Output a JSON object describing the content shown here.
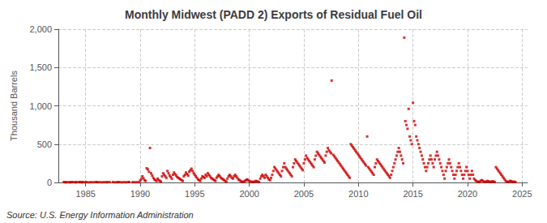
{
  "chart_data": {
    "type": "scatter",
    "title": "Monthly Midwest (PADD 2) Exports of Residual Fuel Oil",
    "ylabel": "Thousand Barrels",
    "annotations": [
      "Source: U.S. Energy Information Administration"
    ],
    "color": "#CC0000",
    "marker": "square",
    "grid": true,
    "xlim": [
      1982.5,
      2025.5
    ],
    "xticks": [
      1985,
      1990,
      1995,
      2000,
      2005,
      2010,
      2015,
      2020,
      2025
    ],
    "ylim": [
      0,
      2000
    ],
    "yticks": [
      0,
      500,
      {
        "value": 1000,
        "label": "1,000"
      },
      {
        "value": 1500,
        "label": "1,500"
      },
      {
        "value": 2000,
        "label": "2,000"
      }
    ],
    "x": [
      1983.0,
      1983.1,
      1983.2,
      1983.3,
      1983.5,
      1983.6,
      1983.7,
      1983.8,
      1984.0,
      1984.1,
      1984.2,
      1984.4,
      1984.5,
      1984.6,
      1984.7,
      1984.8,
      1985.0,
      1985.1,
      1985.3,
      1985.5,
      1985.7,
      1985.9,
      1986.0,
      1986.1,
      1986.3,
      1986.5,
      1986.7,
      1986.9,
      1987.0,
      1987.2,
      1987.5,
      1987.7,
      1987.9,
      1988.0,
      1988.1,
      1988.3,
      1988.5,
      1988.7,
      1988.9,
      1989.0,
      1989.3,
      1989.5,
      1989.7,
      1989.9,
      1990.0,
      1990.1,
      1990.2,
      1990.3,
      1990.4,
      1990.5,
      1990.6,
      1990.7,
      1990.8,
      1990.9,
      1991.0,
      1991.1,
      1991.2,
      1991.3,
      1991.4,
      1991.5,
      1991.6,
      1991.7,
      1991.8,
      1991.9,
      1992.0,
      1992.1,
      1992.2,
      1992.3,
      1992.4,
      1992.5,
      1992.6,
      1992.7,
      1992.8,
      1992.9,
      1993.0,
      1993.1,
      1993.2,
      1993.3,
      1993.4,
      1993.5,
      1993.6,
      1993.7,
      1993.8,
      1993.9,
      1994.0,
      1994.1,
      1994.2,
      1994.3,
      1994.4,
      1994.5,
      1994.6,
      1994.7,
      1994.8,
      1994.9,
      1995.0,
      1995.1,
      1995.2,
      1995.3,
      1995.4,
      1995.5,
      1995.6,
      1995.7,
      1995.8,
      1995.9,
      1996.0,
      1996.1,
      1996.2,
      1996.3,
      1996.4,
      1996.5,
      1996.6,
      1996.7,
      1996.8,
      1996.9,
      1997.0,
      1997.1,
      1997.2,
      1997.3,
      1997.4,
      1997.5,
      1997.6,
      1997.7,
      1997.8,
      1997.9,
      1998.0,
      1998.1,
      1998.2,
      1998.3,
      1998.4,
      1998.5,
      1998.6,
      1998.7,
      1998.8,
      1998.9,
      1999.0,
      1999.1,
      1999.2,
      1999.3,
      1999.4,
      1999.5,
      1999.6,
      1999.7,
      1999.8,
      1999.9,
      2000.0,
      2000.1,
      2000.2,
      2000.3,
      2000.4,
      2000.5,
      2000.6,
      2000.7,
      2000.8,
      2000.9,
      2001.0,
      2001.1,
      2001.2,
      2001.3,
      2001.4,
      2001.5,
      2001.6,
      2001.7,
      2001.8,
      2001.9,
      2002.0,
      2002.1,
      2002.2,
      2002.3,
      2002.4,
      2002.5,
      2002.6,
      2002.7,
      2002.8,
      2002.9,
      2003.0,
      2003.1,
      2003.2,
      2003.3,
      2003.4,
      2003.5,
      2003.6,
      2003.7,
      2003.8,
      2003.9,
      2004.0,
      2004.1,
      2004.2,
      2004.3,
      2004.4,
      2004.5,
      2004.6,
      2004.7,
      2004.8,
      2004.9,
      2005.0,
      2005.1,
      2005.2,
      2005.3,
      2005.4,
      2005.5,
      2005.6,
      2005.7,
      2005.8,
      2005.9,
      2006.0,
      2006.1,
      2006.2,
      2006.3,
      2006.4,
      2006.5,
      2006.6,
      2006.7,
      2006.8,
      2006.9,
      2007.0,
      2007.1,
      2007.2,
      2007.3,
      2007.4,
      2007.5,
      2007.55,
      2007.7,
      2007.8,
      2007.9,
      2008.0,
      2008.1,
      2008.2,
      2008.3,
      2008.4,
      2008.5,
      2008.6,
      2008.7,
      2008.8,
      2008.9,
      2009.0,
      2009.1,
      2009.2,
      2009.3,
      2009.4,
      2009.5,
      2009.6,
      2009.7,
      2009.8,
      2009.9,
      2010.0,
      2010.1,
      2010.2,
      2010.3,
      2010.4,
      2010.5,
      2010.6,
      2010.7,
      2010.8,
      2010.9,
      2011.0,
      2011.1,
      2011.2,
      2011.3,
      2011.4,
      2011.5,
      2011.6,
      2011.7,
      2011.8,
      2011.9,
      2012.0,
      2012.1,
      2012.2,
      2012.3,
      2012.4,
      2012.5,
      2012.6,
      2012.7,
      2012.8,
      2012.9,
      2013.0,
      2013.1,
      2013.2,
      2013.3,
      2013.4,
      2013.5,
      2013.6,
      2013.7,
      2013.8,
      2013.9,
      2014.0,
      2014.1,
      2014.2,
      2014.3,
      2014.4,
      2014.5,
      2014.6,
      2014.7,
      2014.8,
      2014.9,
      2015.0,
      2015.1,
      2015.2,
      2015.3,
      2015.4,
      2015.5,
      2015.6,
      2015.7,
      2015.8,
      2015.9,
      2016.0,
      2016.1,
      2016.2,
      2016.3,
      2016.4,
      2016.5,
      2016.6,
      2016.7,
      2016.8,
      2016.9,
      2017.0,
      2017.1,
      2017.2,
      2017.3,
      2017.4,
      2017.5,
      2017.6,
      2017.7,
      2017.8,
      2017.9,
      2018.0,
      2018.1,
      2018.2,
      2018.3,
      2018.4,
      2018.5,
      2018.6,
      2018.7,
      2018.8,
      2018.9,
      2019.0,
      2019.1,
      2019.2,
      2019.3,
      2019.4,
      2019.5,
      2019.6,
      2019.7,
      2019.8,
      2019.9,
      2020.0,
      2020.1,
      2020.2,
      2020.3,
      2020.4,
      2020.5,
      2020.6,
      2020.7,
      2020.8,
      2020.9,
      2021.0,
      2021.1,
      2021.2,
      2021.3,
      2021.4,
      2021.5,
      2021.6,
      2021.7,
      2021.8,
      2021.9,
      2022.0,
      2022.1,
      2022.2,
      2022.3,
      2022.4,
      2022.5,
      2022.6,
      2022.7,
      2022.8,
      2022.9,
      2023.0,
      2023.1,
      2023.2,
      2023.3,
      2023.4,
      2023.5,
      2023.6,
      2023.7,
      2023.8,
      2023.9,
      2024.0,
      2024.1,
      2024.2,
      2024.3,
      2024.4
    ],
    "values": [
      5,
      3,
      2,
      4,
      3,
      2,
      4,
      5,
      4,
      2,
      5,
      4,
      6,
      3,
      2,
      5,
      3,
      5,
      2,
      4,
      3,
      4,
      5,
      3,
      4,
      3,
      4,
      3,
      4,
      5,
      6,
      2,
      4,
      3,
      5,
      2,
      4,
      3,
      4,
      5,
      4,
      3,
      4,
      3,
      25,
      45,
      80,
      55,
      30,
      20,
      185,
      170,
      140,
      450,
      120,
      90,
      60,
      40,
      30,
      20,
      50,
      30,
      20,
      10,
      80,
      120,
      100,
      80,
      60,
      150,
      120,
      90,
      70,
      50,
      100,
      130,
      110,
      90,
      70,
      60,
      50,
      40,
      30,
      20,
      80,
      100,
      130,
      110,
      90,
      140,
      160,
      180,
      150,
      120,
      100,
      80,
      60,
      40,
      30,
      20,
      50,
      80,
      70,
      60,
      100,
      80,
      120,
      100,
      80,
      60,
      50,
      40,
      30,
      20,
      60,
      80,
      100,
      80,
      60,
      50,
      40,
      30,
      20,
      10,
      50,
      80,
      100,
      80,
      60,
      50,
      80,
      100,
      80,
      60,
      40,
      30,
      20,
      10,
      5,
      10,
      20,
      30,
      40,
      30,
      20,
      10,
      5,
      10,
      5,
      10,
      20,
      15,
      10,
      5,
      50,
      80,
      100,
      80,
      60,
      100,
      80,
      60,
      40,
      30,
      60,
      100,
      150,
      200,
      180,
      160,
      140,
      120,
      100,
      80,
      150,
      200,
      250,
      200,
      180,
      160,
      140,
      120,
      100,
      80,
      200,
      250,
      300,
      280,
      260,
      240,
      220,
      200,
      180,
      160,
      250,
      300,
      350,
      320,
      300,
      280,
      260,
      240,
      220,
      200,
      300,
      350,
      400,
      380,
      360,
      340,
      320,
      300,
      280,
      260,
      350,
      400,
      450,
      420,
      400,
      380,
      1330,
      360,
      340,
      320,
      300,
      280,
      260,
      240,
      220,
      200,
      180,
      160,
      140,
      120,
      100,
      80,
      60,
      500,
      480,
      460,
      440,
      420,
      400,
      380,
      360,
      340,
      320,
      300,
      280,
      260,
      240,
      220,
      600,
      200,
      180,
      160,
      140,
      120,
      100,
      200,
      250,
      300,
      280,
      260,
      240,
      220,
      200,
      180,
      160,
      140,
      120,
      100,
      80,
      60,
      100,
      150,
      200,
      250,
      300,
      350,
      400,
      450,
      400,
      350,
      300,
      250,
      1890,
      800,
      750,
      700,
      960,
      600,
      550,
      500,
      1040,
      800,
      750,
      600,
      550,
      500,
      450,
      400,
      350,
      300,
      250,
      200,
      150,
      200,
      250,
      300,
      350,
      300,
      250,
      200,
      300,
      350,
      400,
      350,
      300,
      250,
      200,
      150,
      100,
      50,
      150,
      200,
      250,
      300,
      250,
      200,
      150,
      100,
      50,
      100,
      150,
      200,
      250,
      200,
      150,
      100,
      50,
      100,
      150,
      200,
      150,
      100,
      50,
      100,
      150,
      100,
      50,
      30,
      20,
      10,
      5,
      10,
      20,
      30,
      20,
      10,
      5,
      10,
      20,
      15,
      10,
      5,
      10,
      15,
      10,
      5,
      200,
      180,
      160,
      140,
      120,
      100,
      80,
      60,
      40,
      20,
      10,
      5,
      10,
      20,
      15,
      10,
      5,
      10,
      5
    ]
  }
}
